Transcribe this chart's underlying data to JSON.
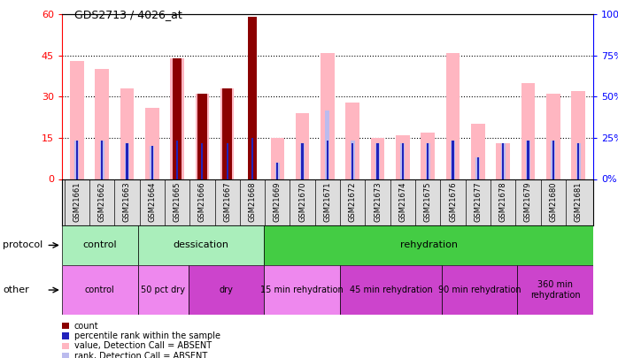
{
  "title": "GDS2713 / 4026_at",
  "samples": [
    "GSM21661",
    "GSM21662",
    "GSM21663",
    "GSM21664",
    "GSM21665",
    "GSM21666",
    "GSM21667",
    "GSM21668",
    "GSM21669",
    "GSM21670",
    "GSM21671",
    "GSM21672",
    "GSM21673",
    "GSM21674",
    "GSM21675",
    "GSM21676",
    "GSM21677",
    "GSM21678",
    "GSM21679",
    "GSM21680",
    "GSM21681"
  ],
  "count_values": [
    0,
    0,
    0,
    0,
    44,
    31,
    33,
    59,
    0,
    0,
    0,
    0,
    0,
    0,
    0,
    0,
    0,
    0,
    0,
    0,
    0
  ],
  "rank_values": [
    14,
    14,
    13,
    12,
    14,
    13,
    13,
    15,
    6,
    13,
    14,
    13,
    13,
    13,
    13,
    14,
    8,
    13,
    14,
    14,
    13
  ],
  "value_absent": [
    43,
    40,
    33,
    26,
    44,
    31,
    33,
    0,
    15,
    24,
    46,
    28,
    15,
    16,
    17,
    46,
    20,
    13,
    35,
    31,
    32
  ],
  "rank_absent": [
    14,
    14,
    13,
    12,
    14,
    13,
    13,
    0,
    6,
    13,
    25,
    14,
    13,
    13,
    13,
    14,
    8,
    13,
    14,
    14,
    13
  ],
  "ylim_left": [
    0,
    60
  ],
  "ylim_right": [
    0,
    100
  ],
  "left_ticks": [
    0,
    15,
    30,
    45,
    60
  ],
  "right_ticks": [
    0,
    25,
    50,
    75,
    100
  ],
  "color_count": "#8B0000",
  "color_rank_blue": "#2222BB",
  "color_value_absent": "#FFB6C1",
  "color_rank_absent": "#BBBBEE",
  "protocol_groups": [
    {
      "label": "control",
      "start": 0,
      "end": 3,
      "color": "#AAEEBB"
    },
    {
      "label": "dessication",
      "start": 3,
      "end": 8,
      "color": "#AAEEBB"
    },
    {
      "label": "rehydration",
      "start": 8,
      "end": 21,
      "color": "#44CC44"
    }
  ],
  "other_groups": [
    {
      "label": "control",
      "start": 0,
      "end": 3,
      "color": "#EE88EE"
    },
    {
      "label": "50 pct dry",
      "start": 3,
      "end": 5,
      "color": "#EE88EE"
    },
    {
      "label": "dry",
      "start": 5,
      "end": 8,
      "color": "#CC44CC"
    },
    {
      "label": "15 min rehydration",
      "start": 8,
      "end": 11,
      "color": "#EE88EE"
    },
    {
      "label": "45 min rehydration",
      "start": 11,
      "end": 15,
      "color": "#CC44CC"
    },
    {
      "label": "90 min rehydration",
      "start": 15,
      "end": 18,
      "color": "#CC44CC"
    },
    {
      "label": "360 min\nrehydration",
      "start": 18,
      "end": 21,
      "color": "#CC44CC"
    }
  ],
  "legend_items": [
    {
      "label": "count",
      "color": "#8B0000"
    },
    {
      "label": "percentile rank within the sample",
      "color": "#2222BB"
    },
    {
      "label": "value, Detection Call = ABSENT",
      "color": "#FFB6C1"
    },
    {
      "label": "rank, Detection Call = ABSENT",
      "color": "#BBBBEE"
    }
  ],
  "fig_width": 6.98,
  "fig_height": 4.05,
  "dpi": 100
}
